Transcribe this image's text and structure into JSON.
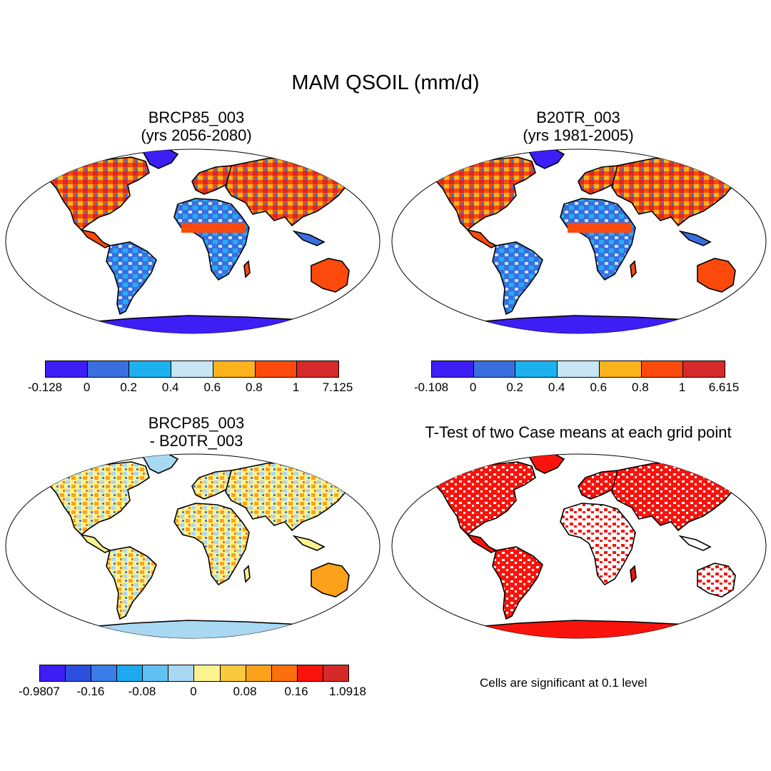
{
  "figure_title": "MAM QSOIL (mm/d)",
  "panels": {
    "p1": {
      "title_line1": "BRCP85_003",
      "title_line2": "(yrs 2056-2080)"
    },
    "p2": {
      "title_line1": "B20TR_003",
      "title_line2": "(yrs 1981-2005)"
    },
    "p3": {
      "title_line1": "BRCP85_003",
      "title_line2": "- B20TR_003"
    },
    "p4": {
      "title_line1": "T-Test of two Case means at each grid point",
      "note": "Cells are significant at 0.1 level"
    }
  },
  "colorbars": {
    "cb1": {
      "colors": [
        "#3d1ef5",
        "#3a6fe0",
        "#1eb1f0",
        "#c6e6f6",
        "#fbb21d",
        "#fb4a0c",
        "#d62a2a"
      ],
      "labels": [
        "-0.128",
        "0",
        "0.2",
        "0.4",
        "0.6",
        "0.8",
        "1",
        "7.125"
      ]
    },
    "cb2": {
      "colors": [
        "#3d1ef5",
        "#3a6fe0",
        "#1eb1f0",
        "#c6e6f6",
        "#fbb21d",
        "#fb4a0c",
        "#d62a2a"
      ],
      "labels": [
        "-0.108",
        "0",
        "0.2",
        "0.4",
        "0.6",
        "0.8",
        "1",
        "6.615"
      ]
    },
    "cb3": {
      "colors": [
        "#3d1ef5",
        "#2c50dc",
        "#3a7de6",
        "#1ea8f0",
        "#62c1f4",
        "#a8d8f2",
        "#fdf290",
        "#fbc93c",
        "#fba21a",
        "#fb6f0c",
        "#f8140c",
        "#d62a2a"
      ],
      "labels": [
        "-0.9807",
        "-0.16",
        "-0.08",
        "0",
        "0.08",
        "0.16",
        "1.0918"
      ]
    }
  }
}
